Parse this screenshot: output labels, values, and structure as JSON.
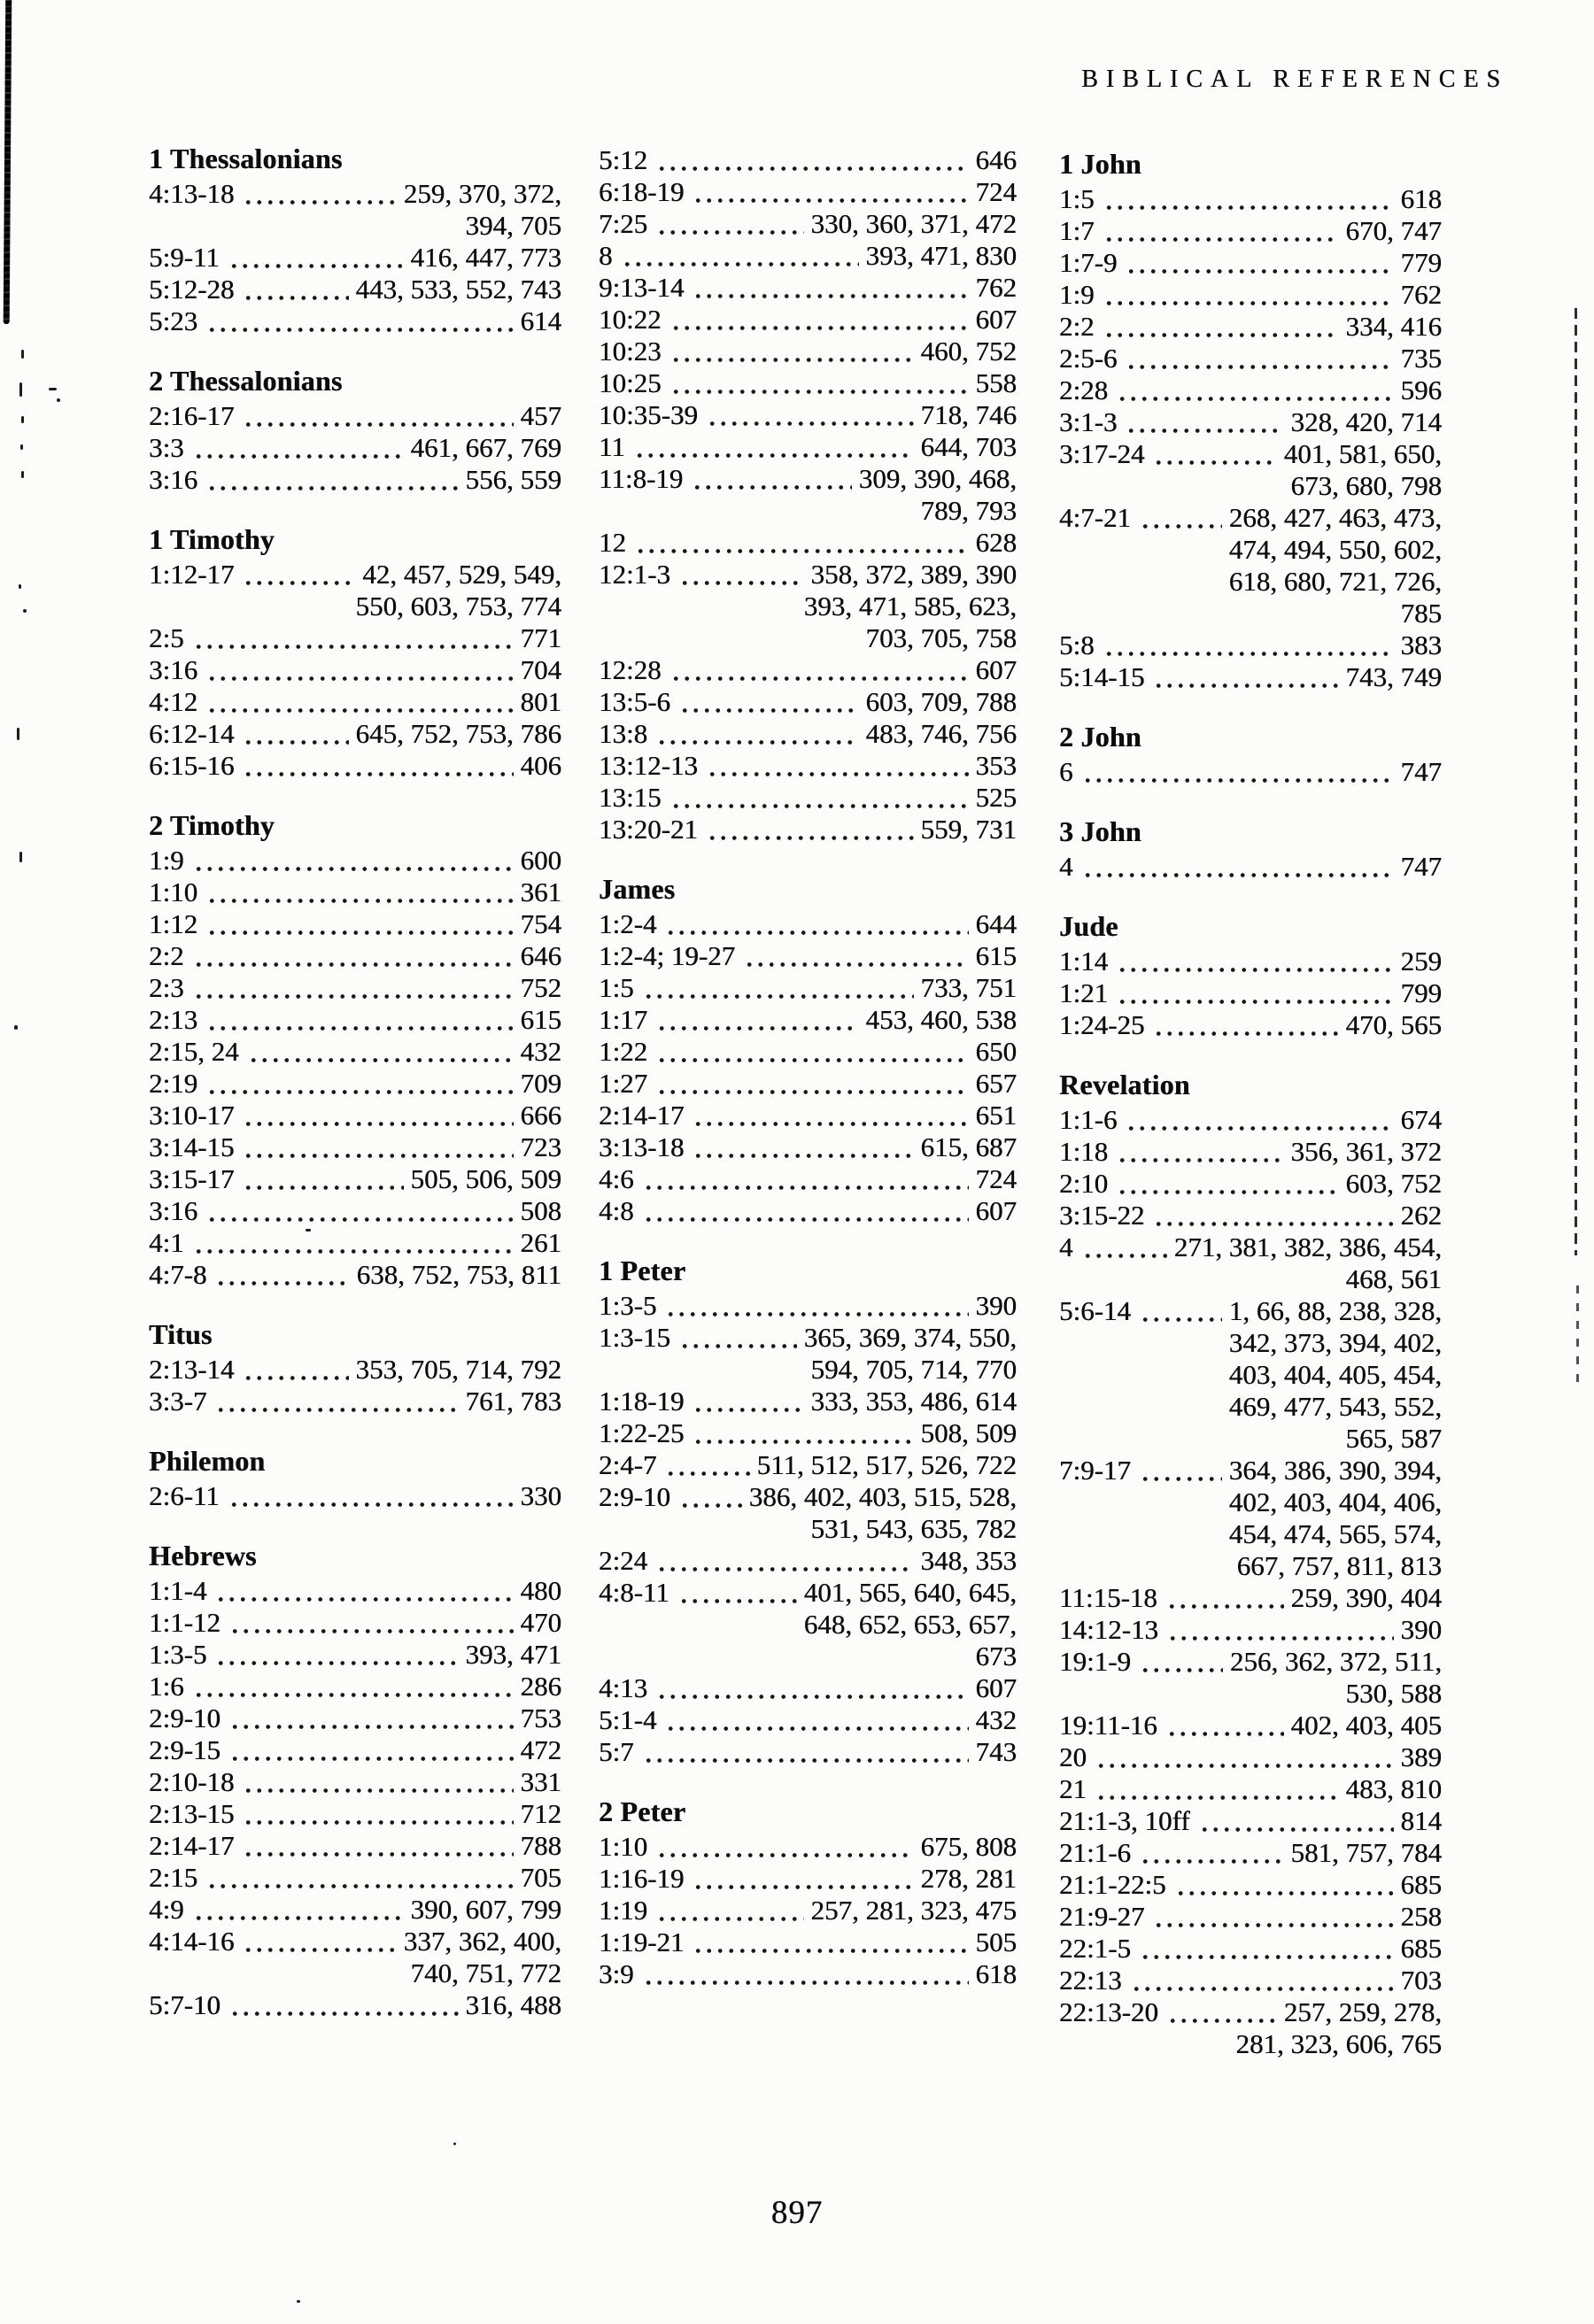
{
  "header": {
    "title": "BIBLICAL REFERENCES"
  },
  "footer": {
    "page_number": "897"
  },
  "columns": [
    {
      "sections": [
        {
          "title": "1 Thessalonians",
          "entries": [
            {
              "ref": "4:13-18",
              "pages": [
                "259, 370, 372,",
                "394, 705"
              ]
            },
            {
              "ref": "5:9-11",
              "pages": [
                "416, 447, 773"
              ]
            },
            {
              "ref": "5:12-28",
              "pages": [
                "443, 533, 552, 743"
              ]
            },
            {
              "ref": "5:23",
              "pages": [
                "614"
              ]
            }
          ]
        },
        {
          "title": "2 Thessalonians",
          "entries": [
            {
              "ref": "2:16-17",
              "pages": [
                "457"
              ]
            },
            {
              "ref": "3:3",
              "pages": [
                "461, 667, 769"
              ]
            },
            {
              "ref": "3:16",
              "pages": [
                "556, 559"
              ]
            }
          ]
        },
        {
          "title": "1 Timothy",
          "entries": [
            {
              "ref": "1:12-17",
              "pages": [
                "42, 457, 529, 549,",
                "550, 603, 753, 774"
              ]
            },
            {
              "ref": "2:5",
              "pages": [
                "771"
              ]
            },
            {
              "ref": "3:16",
              "pages": [
                "704"
              ]
            },
            {
              "ref": "4:12",
              "pages": [
                "801"
              ]
            },
            {
              "ref": "6:12-14",
              "pages": [
                "645, 752, 753, 786"
              ]
            },
            {
              "ref": "6:15-16",
              "pages": [
                "406"
              ]
            }
          ]
        },
        {
          "title": "2 Timothy",
          "entries": [
            {
              "ref": "1:9",
              "pages": [
                "600"
              ]
            },
            {
              "ref": "1:10",
              "pages": [
                "361"
              ]
            },
            {
              "ref": "1:12",
              "pages": [
                "754"
              ]
            },
            {
              "ref": "2:2",
              "pages": [
                "646"
              ]
            },
            {
              "ref": "2:3",
              "pages": [
                "752"
              ]
            },
            {
              "ref": "2:13",
              "pages": [
                "615"
              ]
            },
            {
              "ref": "2:15, 24",
              "pages": [
                "432"
              ]
            },
            {
              "ref": "2:19",
              "pages": [
                "709"
              ]
            },
            {
              "ref": "3:10-17",
              "pages": [
                "666"
              ]
            },
            {
              "ref": "3:14-15",
              "pages": [
                "723"
              ]
            },
            {
              "ref": "3:15-17",
              "pages": [
                "505, 506, 509"
              ]
            },
            {
              "ref": "3:16",
              "pages": [
                "508"
              ]
            },
            {
              "ref": "4:1",
              "pages": [
                "261"
              ]
            },
            {
              "ref": "4:7-8",
              "pages": [
                "638, 752, 753, 811"
              ]
            }
          ]
        },
        {
          "title": "Titus",
          "entries": [
            {
              "ref": "2:13-14",
              "pages": [
                "353, 705, 714, 792"
              ]
            },
            {
              "ref": "3:3-7",
              "pages": [
                "761, 783"
              ]
            }
          ]
        },
        {
          "title": "Philemon",
          "entries": [
            {
              "ref": "2:6-11",
              "pages": [
                "330"
              ]
            }
          ]
        },
        {
          "title": "Hebrews",
          "entries": [
            {
              "ref": "1:1-4",
              "pages": [
                "480"
              ]
            },
            {
              "ref": "1:1-12",
              "pages": [
                "470"
              ]
            },
            {
              "ref": "1:3-5",
              "pages": [
                "393, 471"
              ]
            },
            {
              "ref": "1:6",
              "pages": [
                "286"
              ]
            },
            {
              "ref": "2:9-10",
              "pages": [
                "753"
              ]
            },
            {
              "ref": "2:9-15",
              "pages": [
                "472"
              ]
            },
            {
              "ref": "2:10-18",
              "pages": [
                "331"
              ]
            },
            {
              "ref": "2:13-15",
              "pages": [
                "712"
              ]
            },
            {
              "ref": "2:14-17",
              "pages": [
                "788"
              ]
            },
            {
              "ref": "2:15",
              "pages": [
                "705"
              ]
            },
            {
              "ref": "4:9",
              "pages": [
                "390, 607, 799"
              ]
            },
            {
              "ref": "4:14-16",
              "pages": [
                "337, 362, 400,",
                "740, 751, 772"
              ]
            },
            {
              "ref": "5:7-10",
              "pages": [
                "316, 488"
              ]
            }
          ]
        }
      ]
    },
    {
      "sections": [
        {
          "title": "",
          "entries": [
            {
              "ref": "5:12",
              "pages": [
                "646"
              ]
            },
            {
              "ref": "6:18-19",
              "pages": [
                "724"
              ]
            },
            {
              "ref": "7:25",
              "pages": [
                "330, 360, 371, 472"
              ]
            },
            {
              "ref": "8",
              "pages": [
                "393, 471, 830"
              ]
            },
            {
              "ref": "9:13-14",
              "pages": [
                "762"
              ]
            },
            {
              "ref": "10:22",
              "pages": [
                "607"
              ]
            },
            {
              "ref": "10:23",
              "pages": [
                "460, 752"
              ]
            },
            {
              "ref": "10:25",
              "pages": [
                "558"
              ]
            },
            {
              "ref": "10:35-39",
              "pages": [
                "718, 746"
              ]
            },
            {
              "ref": "11",
              "pages": [
                "644, 703"
              ]
            },
            {
              "ref": "11:8-19",
              "pages": [
                "309, 390, 468,",
                "789, 793"
              ]
            },
            {
              "ref": "12",
              "pages": [
                "628"
              ]
            },
            {
              "ref": "12:1-3",
              "pages": [
                "358, 372, 389, 390",
                "393, 471, 585, 623,",
                "703, 705, 758"
              ]
            },
            {
              "ref": "12:28",
              "pages": [
                "607"
              ]
            },
            {
              "ref": "13:5-6",
              "pages": [
                "603, 709, 788"
              ]
            },
            {
              "ref": "13:8",
              "pages": [
                "483, 746, 756"
              ]
            },
            {
              "ref": "13:12-13",
              "pages": [
                "353"
              ]
            },
            {
              "ref": "13:15",
              "pages": [
                "525"
              ]
            },
            {
              "ref": "13:20-21",
              "pages": [
                "559, 731"
              ]
            }
          ]
        },
        {
          "title": "James",
          "entries": [
            {
              "ref": "1:2-4",
              "pages": [
                "644"
              ]
            },
            {
              "ref": "1:2-4; 19-27",
              "pages": [
                "615"
              ]
            },
            {
              "ref": "1:5",
              "pages": [
                "733, 751"
              ]
            },
            {
              "ref": "1:17",
              "pages": [
                "453, 460, 538"
              ]
            },
            {
              "ref": "1:22",
              "pages": [
                "650"
              ]
            },
            {
              "ref": "1:27",
              "pages": [
                "657"
              ]
            },
            {
              "ref": "2:14-17",
              "pages": [
                "651"
              ]
            },
            {
              "ref": "3:13-18",
              "pages": [
                "615, 687"
              ]
            },
            {
              "ref": "4:6",
              "pages": [
                "724"
              ]
            },
            {
              "ref": "4:8",
              "pages": [
                "607"
              ]
            }
          ]
        },
        {
          "title": "1 Peter",
          "entries": [
            {
              "ref": "1:3-5",
              "pages": [
                "390"
              ]
            },
            {
              "ref": "1:3-15",
              "pages": [
                "365, 369, 374, 550,",
                "594, 705, 714, 770"
              ]
            },
            {
              "ref": "1:18-19",
              "pages": [
                "333, 353, 486, 614"
              ]
            },
            {
              "ref": "1:22-25",
              "pages": [
                "508, 509"
              ]
            },
            {
              "ref": "2:4-7",
              "pages": [
                "511, 512, 517, 526, 722"
              ]
            },
            {
              "ref": "2:9-10",
              "pages": [
                "386, 402, 403, 515, 528,",
                "531, 543, 635, 782"
              ]
            },
            {
              "ref": "2:24",
              "pages": [
                "348, 353"
              ]
            },
            {
              "ref": "4:8-11",
              "pages": [
                "401, 565, 640, 645,",
                "648, 652, 653, 657,",
                "673"
              ]
            },
            {
              "ref": "4:13",
              "pages": [
                "607"
              ]
            },
            {
              "ref": "5:1-4",
              "pages": [
                "432"
              ]
            },
            {
              "ref": "5:7",
              "pages": [
                "743"
              ]
            }
          ]
        },
        {
          "title": "2 Peter",
          "entries": [
            {
              "ref": "1:10",
              "pages": [
                "675, 808"
              ]
            },
            {
              "ref": "1:16-19",
              "pages": [
                "278, 281"
              ]
            },
            {
              "ref": "1:19",
              "pages": [
                "257, 281, 323, 475"
              ]
            },
            {
              "ref": "1:19-21",
              "pages": [
                "505"
              ]
            },
            {
              "ref": "3:9",
              "pages": [
                "618"
              ]
            }
          ]
        }
      ]
    },
    {
      "sections": [
        {
          "title": "1 John",
          "entries": [
            {
              "ref": "1:5",
              "pages": [
                "618"
              ]
            },
            {
              "ref": "1:7",
              "pages": [
                "670, 747"
              ]
            },
            {
              "ref": "1:7-9",
              "pages": [
                "779"
              ]
            },
            {
              "ref": "1:9",
              "pages": [
                "762"
              ]
            },
            {
              "ref": "2:2",
              "pages": [
                "334, 416"
              ]
            },
            {
              "ref": "2:5-6",
              "pages": [
                "735"
              ]
            },
            {
              "ref": "2:28",
              "pages": [
                "596"
              ]
            },
            {
              "ref": "3:1-3",
              "pages": [
                "328, 420, 714"
              ]
            },
            {
              "ref": "3:17-24",
              "pages": [
                "401, 581, 650,",
                "673, 680, 798"
              ]
            },
            {
              "ref": "4:7-21",
              "pages": [
                "268, 427, 463, 473,",
                "474, 494, 550, 602,",
                "618, 680, 721, 726,",
                "785"
              ]
            },
            {
              "ref": "5:8",
              "pages": [
                "383"
              ]
            },
            {
              "ref": "5:14-15",
              "pages": [
                "743, 749"
              ]
            }
          ]
        },
        {
          "title": "2 John",
          "entries": [
            {
              "ref": "6",
              "pages": [
                "747"
              ]
            }
          ]
        },
        {
          "title": "3 John",
          "entries": [
            {
              "ref": "4",
              "pages": [
                "747"
              ]
            }
          ]
        },
        {
          "title": "Jude",
          "entries": [
            {
              "ref": "1:14",
              "pages": [
                "259"
              ]
            },
            {
              "ref": "1:21",
              "pages": [
                "799"
              ]
            },
            {
              "ref": "1:24-25",
              "pages": [
                "470, 565"
              ]
            }
          ]
        },
        {
          "title": "Revelation",
          "entries": [
            {
              "ref": "1:1-6",
              "pages": [
                "674"
              ]
            },
            {
              "ref": "1:18",
              "pages": [
                "356, 361, 372"
              ]
            },
            {
              "ref": "2:10",
              "pages": [
                "603, 752"
              ]
            },
            {
              "ref": "3:15-22",
              "pages": [
                "262"
              ]
            },
            {
              "ref": "4",
              "pages": [
                "271, 381, 382, 386, 454,",
                "468, 561"
              ]
            },
            {
              "ref": "5:6-14",
              "pages": [
                "1, 66, 88, 238, 328,",
                "342, 373, 394, 402,",
                "403, 404, 405, 454,",
                "469, 477, 543, 552,",
                "565, 587"
              ]
            },
            {
              "ref": "7:9-17",
              "pages": [
                "364, 386, 390, 394,",
                "402, 403, 404, 406,",
                "454, 474, 565, 574,",
                "667, 757, 811, 813"
              ]
            },
            {
              "ref": "11:15-18",
              "pages": [
                "259, 390, 404"
              ]
            },
            {
              "ref": "14:12-13",
              "pages": [
                "390"
              ]
            },
            {
              "ref": "19:1-9",
              "pages": [
                "256, 362, 372, 511,",
                "530, 588"
              ]
            },
            {
              "ref": "19:11-16",
              "pages": [
                "402, 403, 405"
              ]
            },
            {
              "ref": "20",
              "pages": [
                "389"
              ]
            },
            {
              "ref": "21",
              "pages": [
                "483, 810"
              ]
            },
            {
              "ref": "21:1-3, 10ff",
              "pages": [
                "814"
              ]
            },
            {
              "ref": "21:1-6",
              "pages": [
                "581, 757, 784"
              ]
            },
            {
              "ref": "21:1-22:5",
              "pages": [
                "685"
              ]
            },
            {
              "ref": "21:9-27",
              "pages": [
                "258"
              ]
            },
            {
              "ref": "22:1-5",
              "pages": [
                "685"
              ]
            },
            {
              "ref": "22:13",
              "pages": [
                "703"
              ]
            },
            {
              "ref": "22:13-20",
              "pages": [
                "257, 259, 278,",
                "281, 323, 606, 765"
              ]
            }
          ]
        }
      ]
    }
  ]
}
